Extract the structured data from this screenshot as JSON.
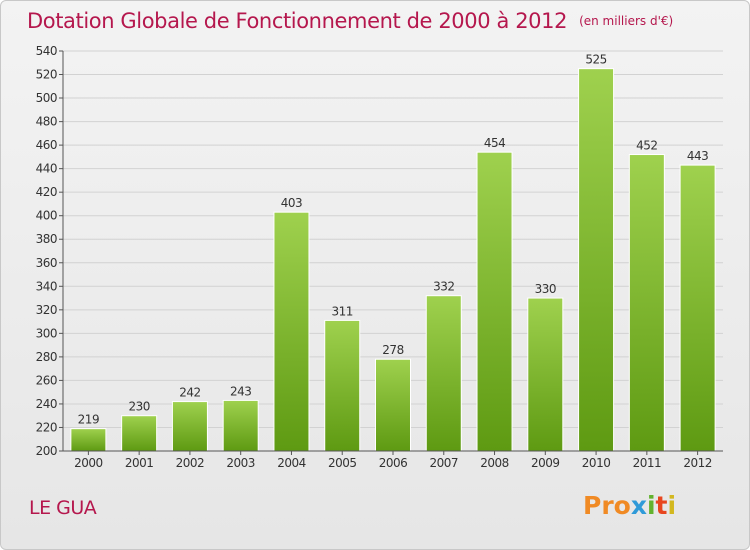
{
  "title": "Dotation Globale de Fonctionnement de 2000 à 2012",
  "subtitle": "(en milliers d'€)",
  "place": "LE GUA",
  "logo": {
    "text": "Proxiti",
    "parts": [
      "Pro",
      "x",
      "i",
      "t",
      "i"
    ]
  },
  "colors": {
    "bar_light": "#9fd14e",
    "bar_dark": "#5e9a12",
    "title": "#b5174d"
  },
  "chart_data": {
    "type": "bar",
    "categories": [
      "2000",
      "2001",
      "2002",
      "2003",
      "2004",
      "2005",
      "2006",
      "2007",
      "2008",
      "2009",
      "2010",
      "2011",
      "2012"
    ],
    "values": [
      219,
      230,
      242,
      243,
      403,
      311,
      278,
      332,
      454,
      330,
      525,
      452,
      443
    ],
    "ylim": [
      200,
      540
    ],
    "yticks": [
      200,
      220,
      240,
      260,
      280,
      300,
      320,
      340,
      360,
      380,
      400,
      420,
      440,
      460,
      480,
      500,
      520,
      540
    ],
    "grid": true,
    "xlabel": "",
    "ylabel": ""
  }
}
